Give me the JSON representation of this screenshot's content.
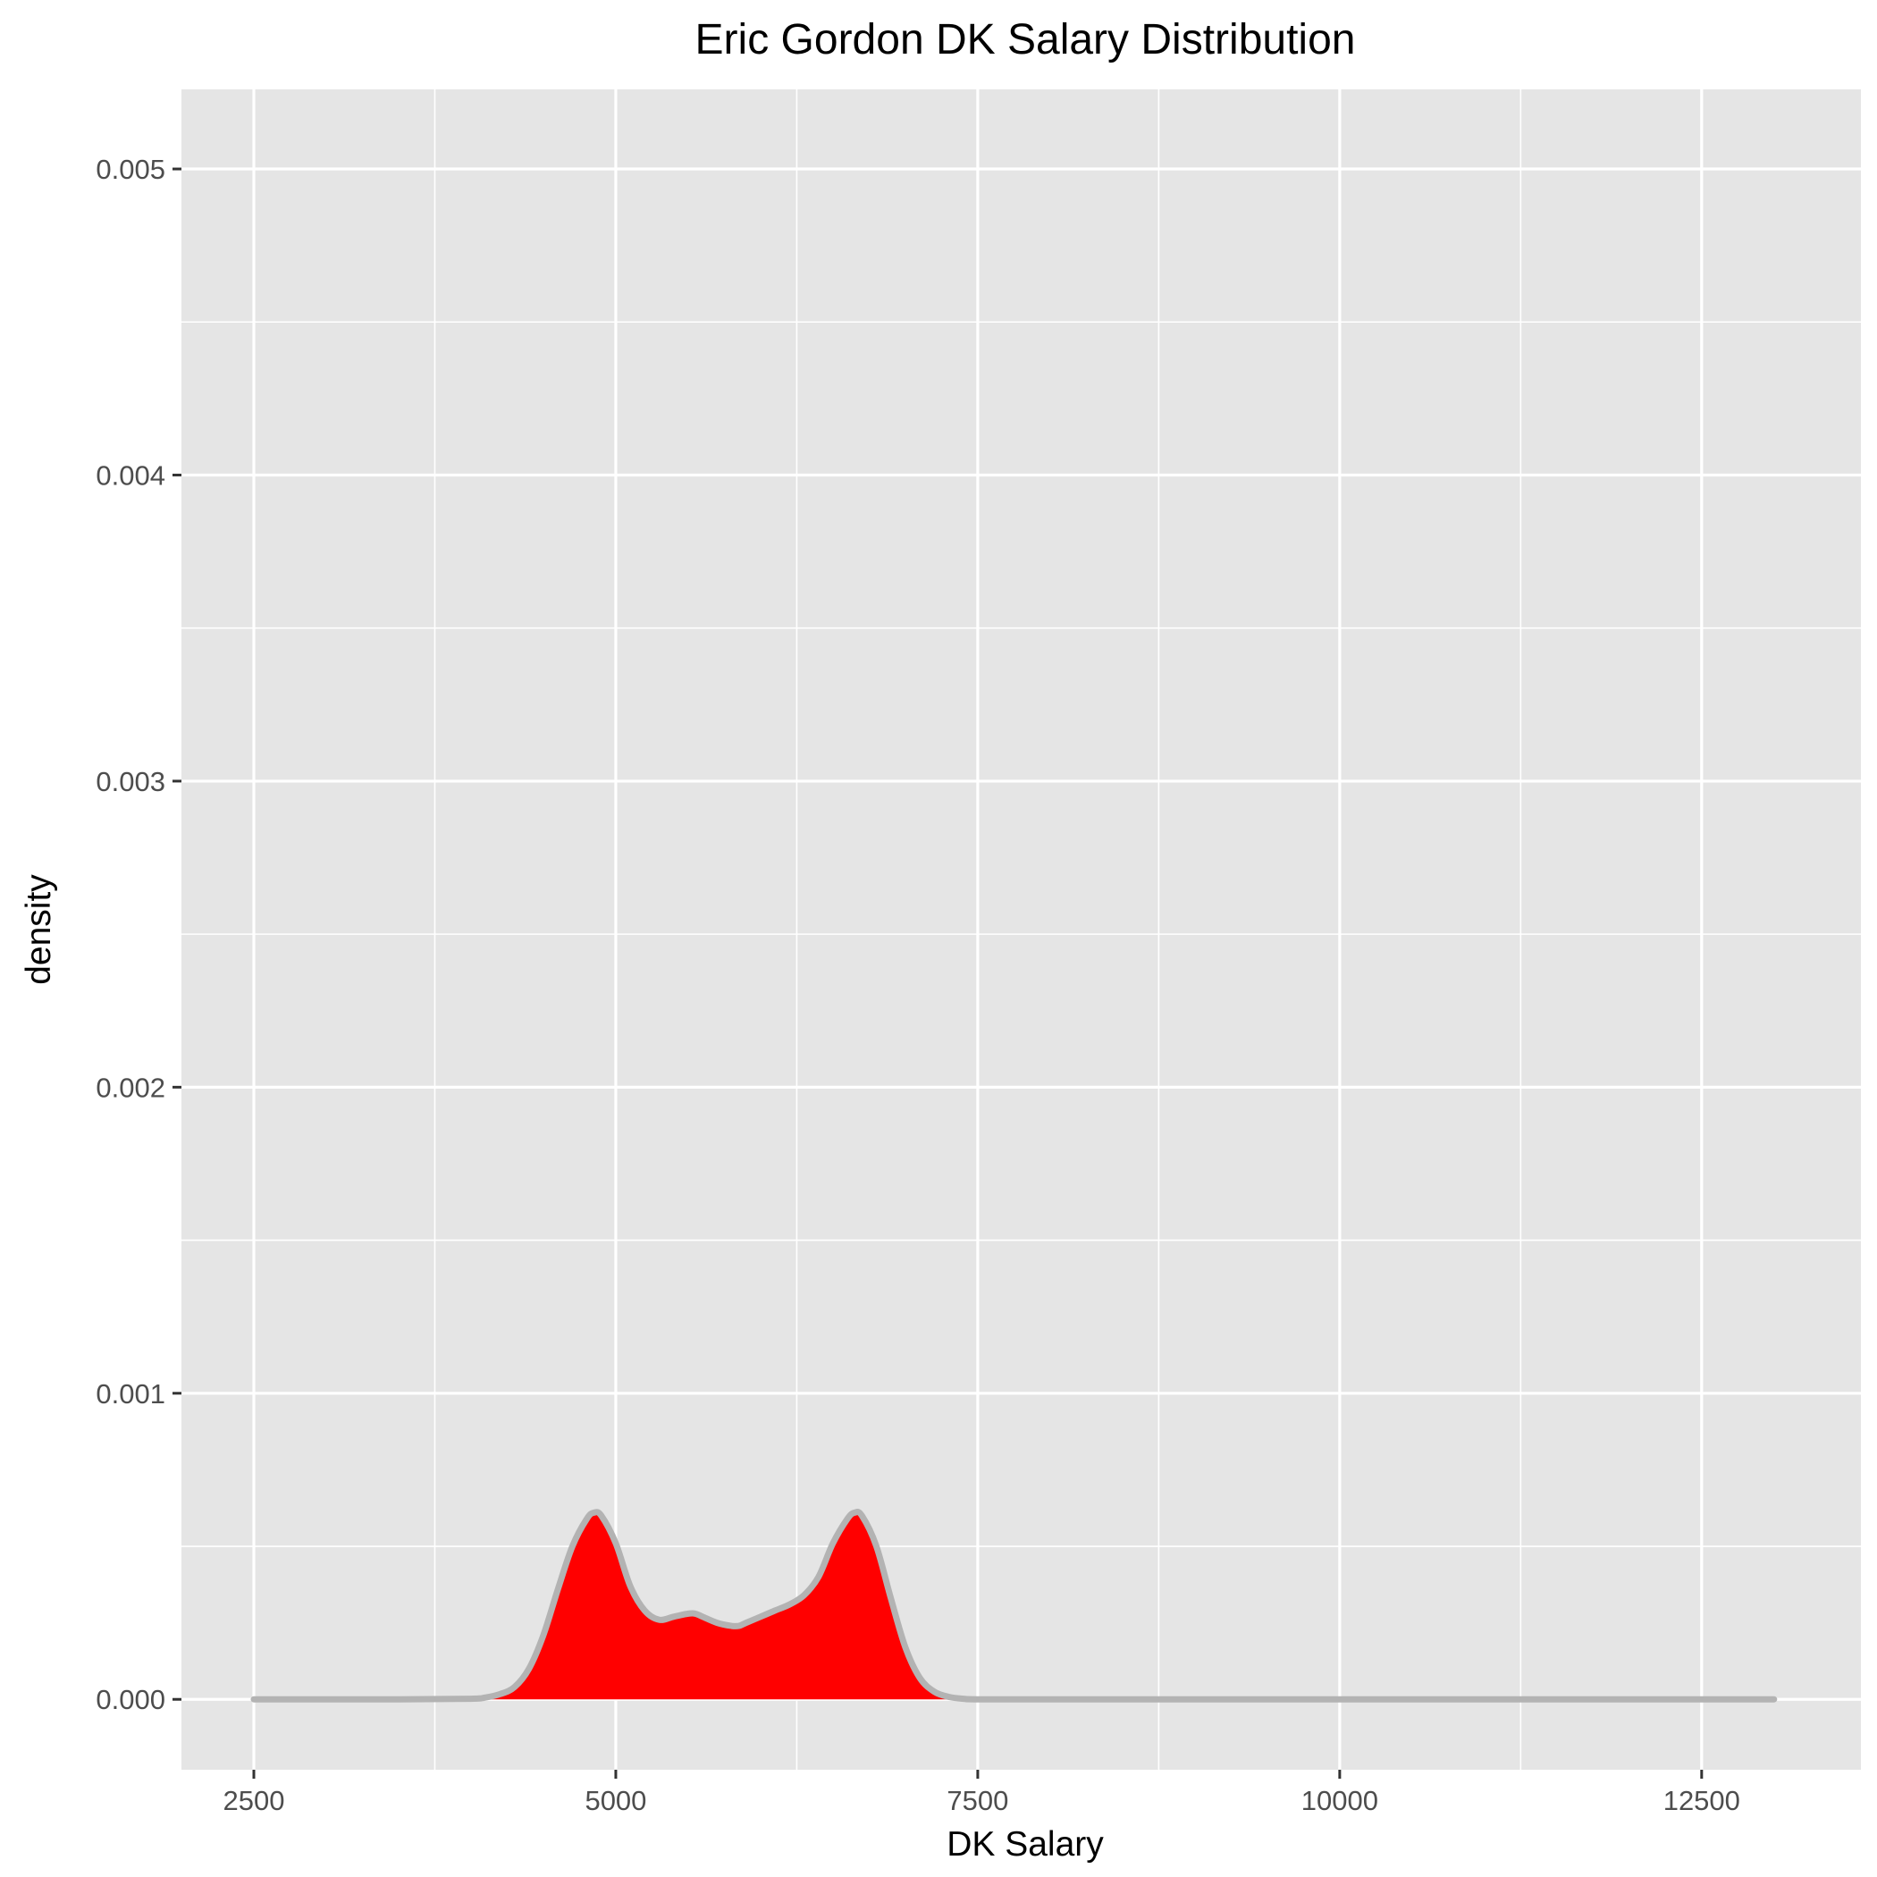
{
  "chart_data": {
    "type": "area",
    "title": "Eric Gordon DK Salary Distribution",
    "xlabel": "DK Salary",
    "ylabel": "density",
    "xlim": [
      2000,
      13600
    ],
    "ylim": [
      -0.00023,
      0.00526
    ],
    "x_ticks": [
      2500,
      5000,
      7500,
      10000,
      12500
    ],
    "x_tick_labels": [
      "2500",
      "5000",
      "7500",
      "10000",
      "12500"
    ],
    "y_ticks": [
      0,
      0.001,
      0.002,
      0.003,
      0.004,
      0.005
    ],
    "y_tick_labels": [
      "0.000",
      "0.001",
      "0.002",
      "0.003",
      "0.004",
      "0.005"
    ],
    "grid": true,
    "legend": "none",
    "series": [
      {
        "x": [
          2500,
          3500,
          4000,
          4100,
          4200,
          4300,
          4400,
          4500,
          4600,
          4700,
          4800,
          4850,
          4900,
          5000,
          5100,
          5200,
          5300,
          5400,
          5500,
          5550,
          5600,
          5700,
          5800,
          5850,
          5900,
          6000,
          6100,
          6200,
          6300,
          6400,
          6500,
          6600,
          6650,
          6700,
          6800,
          6900,
          7000,
          7100,
          7200,
          7300,
          7400,
          7500,
          8000,
          9000,
          10000,
          11000,
          12000,
          13000
        ],
        "y": [
          0,
          0,
          2e-06,
          6e-06,
          1.7e-05,
          4e-05,
          0.0001,
          0.00021,
          0.00036,
          0.0005,
          0.00059,
          0.00061,
          0.0006,
          0.00051,
          0.00037,
          0.00029,
          0.00026,
          0.00027,
          0.00028,
          0.00028,
          0.00027,
          0.00025,
          0.00024,
          0.00024,
          0.00025,
          0.00027,
          0.00029,
          0.00031,
          0.00034,
          0.0004,
          0.00051,
          0.00059,
          0.00061,
          0.0006,
          0.0005,
          0.00033,
          0.00017,
          7e-05,
          2.5e-05,
          8e-06,
          2e-06,
          0,
          0,
          0,
          0,
          0,
          0,
          0
        ]
      }
    ],
    "colors": {
      "panel": "#e5e5e5",
      "grid": "#ffffff",
      "fill": "#ff0000",
      "line": "#b3b3b3",
      "tick": "#333333"
    }
  }
}
